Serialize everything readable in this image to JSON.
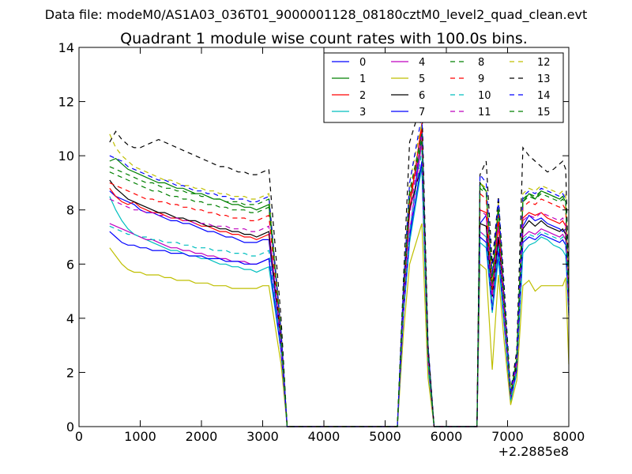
{
  "figure": {
    "suptitle": "Data file: modeM0/AS1A03_036T01_9000001128_08180cztM0_level2_quad_clean.evt",
    "title": "Quadrant 1 module wise count rates with 100.0s bins.",
    "offset_label": "+2.2885e8"
  },
  "chart_data": {
    "type": "line",
    "title": "Quadrant 1 module wise count rates with 100.0s bins.",
    "xlabel": "",
    "ylabel": "",
    "xlim": [
      0,
      8000
    ],
    "ylim": [
      0,
      14
    ],
    "x_offset": 228850000,
    "grid": false,
    "legend_placement": "top-right",
    "legend_columns": 4,
    "x_ticks": [
      0,
      1000,
      2000,
      3000,
      4000,
      5000,
      6000,
      7000,
      8000
    ],
    "y_ticks": [
      0,
      2,
      4,
      6,
      8,
      10,
      12,
      14
    ],
    "x_tick_labels": [
      "0",
      "1000",
      "2000",
      "3000",
      "4000",
      "5000",
      "6000",
      "7000",
      "8000"
    ],
    "y_tick_labels": [
      "0",
      "2",
      "4",
      "6",
      "8",
      "10",
      "12",
      "14"
    ],
    "series": [
      {
        "name": "0",
        "color": "#0000ff",
        "dash": false,
        "gti1": [
          8.7,
          8.5,
          8.4,
          8.3,
          8.2,
          8.0,
          7.9,
          7.9,
          7.8,
          7.7,
          7.6,
          7.6,
          7.5,
          7.5,
          7.4,
          7.3,
          7.2,
          7.2,
          7.1,
          7.0,
          7.0,
          6.9,
          6.8,
          6.8,
          6.8,
          6.9,
          6.9
        ],
        "end1": 3.0,
        "peak": [
          4.5,
          7.0,
          11.0,
          3.0
        ],
        "gti3": [
          7.5,
          7.8,
          5.0,
          7.0,
          4.0,
          1.0,
          2.0,
          7.4,
          7.8,
          7.6,
          7.7,
          7.5,
          7.4,
          7.3,
          7.2,
          7.3,
          4.5
        ]
      },
      {
        "name": "1",
        "color": "#008000",
        "dash": false,
        "gti1": [
          9.8,
          9.9,
          9.7,
          9.5,
          9.4,
          9.3,
          9.2,
          9.1,
          9.0,
          9.0,
          8.9,
          8.8,
          8.8,
          8.7,
          8.6,
          8.6,
          8.5,
          8.4,
          8.4,
          8.3,
          8.2,
          8.2,
          8.1,
          8.1,
          8.0,
          8.1,
          8.2
        ],
        "end1": 3.5,
        "peak": [
          5.0,
          8.4,
          10.5,
          2.5
        ],
        "gti3": [
          9.0,
          8.7,
          5.5,
          8.0,
          4.5,
          1.2,
          2.5,
          8.3,
          8.6,
          8.4,
          8.7,
          8.6,
          8.5,
          8.4,
          8.5,
          8.3,
          5.0
        ]
      },
      {
        "name": "2",
        "color": "#ff0000",
        "dash": false,
        "gti1": [
          8.8,
          8.5,
          8.3,
          8.2,
          8.3,
          8.1,
          8.0,
          7.9,
          7.9,
          7.8,
          7.7,
          7.7,
          7.6,
          7.6,
          7.5,
          7.4,
          7.4,
          7.3,
          7.2,
          7.2,
          7.1,
          7.1,
          7.0,
          7.0,
          6.9,
          7.0,
          7.1
        ],
        "end1": 3.2,
        "peak": [
          4.8,
          8.0,
          11.2,
          2.6
        ],
        "gti3": [
          8.0,
          7.9,
          4.8,
          7.5,
          4.2,
          1.1,
          2.2,
          7.7,
          7.9,
          7.8,
          7.9,
          7.7,
          7.6,
          7.5,
          7.6,
          7.4,
          4.6
        ]
      },
      {
        "name": "3",
        "color": "#00bfbf",
        "dash": false,
        "gti1": [
          8.5,
          8.0,
          7.6,
          7.3,
          7.1,
          7.0,
          6.9,
          6.8,
          6.7,
          6.6,
          6.5,
          6.5,
          6.4,
          6.3,
          6.3,
          6.2,
          6.2,
          6.1,
          6.0,
          6.0,
          5.9,
          5.9,
          5.8,
          5.8,
          5.7,
          5.8,
          5.9
        ],
        "end1": 2.8,
        "peak": [
          4.2,
          6.8,
          9.6,
          2.2
        ],
        "gti3": [
          6.8,
          6.6,
          4.2,
          6.2,
          3.6,
          0.9,
          2.0,
          6.4,
          6.7,
          6.8,
          7.0,
          6.9,
          6.7,
          6.6,
          6.5,
          6.3,
          4.2
        ]
      },
      {
        "name": "4",
        "color": "#bf00bf",
        "dash": false,
        "gti1": [
          7.5,
          7.4,
          7.3,
          7.2,
          7.1,
          7.0,
          6.9,
          6.9,
          6.8,
          6.7,
          6.6,
          6.6,
          6.5,
          6.5,
          6.4,
          6.4,
          6.3,
          6.3,
          6.2,
          6.2,
          6.1,
          6.1,
          6.1,
          6.0,
          6.0,
          6.1,
          6.2
        ],
        "end1": 2.8,
        "peak": [
          4.2,
          7.2,
          10.5,
          2.4
        ],
        "gti3": [
          7.2,
          7.0,
          4.4,
          6.8,
          3.8,
          1.0,
          2.1,
          7.0,
          7.2,
          7.1,
          7.3,
          7.2,
          7.1,
          7.0,
          7.1,
          6.9,
          4.3
        ]
      },
      {
        "name": "5",
        "color": "#bfbf00",
        "dash": false,
        "gti1": [
          6.6,
          6.3,
          6.0,
          5.8,
          5.7,
          5.7,
          5.6,
          5.6,
          5.6,
          5.5,
          5.5,
          5.4,
          5.4,
          5.4,
          5.3,
          5.3,
          5.3,
          5.2,
          5.2,
          5.2,
          5.1,
          5.1,
          5.1,
          5.1,
          5.1,
          5.2,
          5.2
        ],
        "end1": 2.3,
        "peak": [
          3.5,
          6.0,
          7.5,
          1.8
        ],
        "gti3": [
          6.0,
          5.8,
          2.1,
          5.6,
          3.0,
          0.8,
          1.7,
          5.2,
          5.4,
          5.0,
          5.2,
          5.2,
          5.2,
          5.2,
          5.2,
          5.5,
          2.3
        ]
      },
      {
        "name": "6",
        "color": "#000000",
        "dash": false,
        "gti1": [
          9.1,
          8.8,
          8.6,
          8.4,
          8.3,
          8.2,
          8.1,
          8.0,
          7.9,
          7.9,
          7.8,
          7.7,
          7.7,
          7.6,
          7.6,
          7.5,
          7.4,
          7.4,
          7.3,
          7.3,
          7.2,
          7.2,
          7.1,
          7.1,
          7.0,
          7.1,
          7.2
        ],
        "end1": 3.2,
        "peak": [
          4.8,
          8.0,
          9.7,
          2.6
        ],
        "gti3": [
          7.5,
          7.4,
          4.8,
          7.0,
          4.1,
          1.1,
          2.3,
          7.3,
          7.6,
          7.4,
          7.6,
          7.4,
          7.3,
          7.2,
          7.3,
          7.1,
          4.5
        ]
      },
      {
        "name": "7",
        "color": "#0000ff",
        "dash": false,
        "gti1": [
          7.2,
          7.0,
          6.8,
          6.7,
          6.7,
          6.6,
          6.6,
          6.5,
          6.5,
          6.5,
          6.4,
          6.4,
          6.4,
          6.3,
          6.3,
          6.3,
          6.2,
          6.2,
          6.2,
          6.1,
          6.1,
          6.1,
          6.0,
          6.0,
          6.0,
          6.1,
          6.2
        ],
        "end1": 2.8,
        "peak": [
          4.2,
          7.0,
          9.8,
          2.4
        ],
        "gti3": [
          7.0,
          6.8,
          4.3,
          6.5,
          3.7,
          1.0,
          2.1,
          6.8,
          7.0,
          6.9,
          7.1,
          7.0,
          6.9,
          6.8,
          6.9,
          6.7,
          4.1
        ]
      },
      {
        "name": "8",
        "color": "#008000",
        "dash": true,
        "gti1": [
          9.4,
          9.3,
          9.2,
          9.1,
          9.0,
          8.9,
          8.8,
          8.7,
          8.7,
          8.6,
          8.5,
          8.5,
          8.4,
          8.4,
          8.3,
          8.3,
          8.2,
          8.2,
          8.1,
          8.1,
          8.0,
          8.0,
          8.0,
          7.9,
          7.9,
          8.0,
          8.1
        ],
        "end1": 3.4,
        "peak": [
          5.0,
          8.6,
          10.6,
          2.7
        ],
        "gti3": [
          8.8,
          8.6,
          5.2,
          8.0,
          4.4,
          1.2,
          2.5,
          8.3,
          8.5,
          8.4,
          8.6,
          8.5,
          8.4,
          8.3,
          8.4,
          8.2,
          4.8
        ]
      },
      {
        "name": "9",
        "color": "#ff0000",
        "dash": true,
        "gti1": [
          9.0,
          8.9,
          8.8,
          8.7,
          8.6,
          8.5,
          8.4,
          8.4,
          8.3,
          8.3,
          8.2,
          8.2,
          8.1,
          8.1,
          8.0,
          8.0,
          7.9,
          7.9,
          7.8,
          7.8,
          7.7,
          7.7,
          7.7,
          7.6,
          7.6,
          7.7,
          7.8
        ],
        "end1": 3.3,
        "peak": [
          4.9,
          8.4,
          11.0,
          2.7
        ],
        "gti3": [
          8.6,
          8.4,
          5.0,
          7.8,
          4.3,
          1.2,
          2.4,
          8.1,
          8.3,
          8.2,
          8.4,
          8.3,
          8.2,
          8.1,
          8.2,
          8.0,
          4.7
        ]
      },
      {
        "name": "10",
        "color": "#00bfbf",
        "dash": true,
        "gti1": [
          7.4,
          7.3,
          7.2,
          7.1,
          7.1,
          7.0,
          7.0,
          6.9,
          6.9,
          6.8,
          6.8,
          6.8,
          6.7,
          6.7,
          6.6,
          6.6,
          6.6,
          6.5,
          6.5,
          6.5,
          6.4,
          6.4,
          6.4,
          6.3,
          6.3,
          6.4,
          6.5
        ],
        "end1": 2.9,
        "peak": [
          4.3,
          7.2,
          10.2,
          2.4
        ],
        "gti3": [
          7.2,
          7.0,
          4.4,
          6.7,
          3.8,
          1.0,
          2.1,
          6.9,
          7.1,
          7.0,
          7.2,
          7.1,
          7.0,
          6.9,
          7.0,
          6.8,
          4.2
        ]
      },
      {
        "name": "11",
        "color": "#bf00bf",
        "dash": true,
        "gti1": [
          8.4,
          8.3,
          8.2,
          8.1,
          8.0,
          8.0,
          7.9,
          7.9,
          7.8,
          7.8,
          7.7,
          7.7,
          7.6,
          7.6,
          7.5,
          7.5,
          7.5,
          7.4,
          7.4,
          7.4,
          7.3,
          7.3,
          7.3,
          7.2,
          7.2,
          7.3,
          7.4
        ],
        "end1": 3.1,
        "peak": [
          4.6,
          7.8,
          10.8,
          2.5
        ],
        "gti3": [
          8.0,
          7.8,
          4.8,
          7.4,
          4.0,
          1.1,
          2.3,
          7.6,
          7.8,
          7.7,
          7.9,
          7.8,
          7.7,
          7.6,
          7.7,
          7.5,
          4.4
        ]
      },
      {
        "name": "12",
        "color": "#bfbf00",
        "dash": true,
        "gti1": [
          10.8,
          10.3,
          10.0,
          9.8,
          9.6,
          9.5,
          9.4,
          9.3,
          9.2,
          9.1,
          9.1,
          9.0,
          8.9,
          8.9,
          8.8,
          8.8,
          8.7,
          8.7,
          8.6,
          8.6,
          8.5,
          8.5,
          8.5,
          8.4,
          8.4,
          8.5,
          8.6
        ],
        "end1": 3.6,
        "peak": [
          5.2,
          9.0,
          11.2,
          2.8
        ],
        "gti3": [
          9.0,
          8.8,
          5.4,
          8.3,
          4.6,
          1.3,
          2.6,
          8.6,
          8.8,
          8.7,
          8.9,
          8.8,
          8.7,
          8.6,
          8.7,
          8.5,
          5.0
        ]
      },
      {
        "name": "13",
        "color": "#000000",
        "dash": true,
        "gti1": [
          10.5,
          10.9,
          10.6,
          10.4,
          10.3,
          10.3,
          10.4,
          10.5,
          10.6,
          10.5,
          10.4,
          10.3,
          10.2,
          10.1,
          10.0,
          9.9,
          9.8,
          9.7,
          9.6,
          9.6,
          9.5,
          9.4,
          9.4,
          9.3,
          9.3,
          9.4,
          9.5
        ],
        "end1": 4.0,
        "peak": [
          5.5,
          10.5,
          12.0,
          3.0
        ],
        "gti3": [
          9.3,
          9.8,
          6.0,
          8.5,
          5.0,
          1.3,
          2.8,
          10.3,
          10.0,
          9.8,
          9.6,
          9.4,
          9.5,
          9.7,
          9.8,
          9.5,
          5.2
        ]
      },
      {
        "name": "14",
        "color": "#0000ff",
        "dash": true,
        "gti1": [
          10.0,
          9.9,
          9.8,
          9.6,
          9.5,
          9.4,
          9.3,
          9.2,
          9.1,
          9.1,
          9.0,
          8.9,
          8.9,
          8.8,
          8.7,
          8.7,
          8.6,
          8.6,
          8.5,
          8.5,
          8.4,
          8.4,
          8.4,
          8.3,
          8.3,
          8.4,
          8.5
        ],
        "end1": 3.5,
        "peak": [
          5.2,
          9.0,
          11.5,
          2.8
        ],
        "gti3": [
          9.3,
          9.0,
          5.6,
          8.4,
          4.7,
          1.2,
          2.6,
          8.5,
          8.7,
          8.6,
          8.8,
          8.7,
          8.6,
          8.5,
          8.6,
          8.4,
          4.9
        ]
      },
      {
        "name": "15",
        "color": "#008000",
        "dash": true,
        "gti1": [
          9.6,
          9.5,
          9.4,
          9.3,
          9.2,
          9.1,
          9.0,
          9.0,
          8.9,
          8.8,
          8.8,
          8.7,
          8.7,
          8.6,
          8.6,
          8.5,
          8.5,
          8.4,
          8.4,
          8.3,
          8.3,
          8.3,
          8.2,
          8.2,
          8.2,
          8.3,
          8.4
        ],
        "end1": 3.4,
        "peak": [
          5.0,
          8.7,
          10.8,
          2.7
        ],
        "gti3": [
          8.9,
          8.7,
          5.3,
          8.1,
          4.5,
          1.2,
          2.5,
          8.4,
          8.6,
          8.5,
          8.7,
          8.6,
          8.5,
          8.4,
          8.5,
          8.3,
          4.8
        ]
      }
    ],
    "gti1_x_start": 500,
    "gti1_x_step": 100,
    "gti1_end_x": 3300,
    "gap_zero_points": [
      3400,
      5200
    ],
    "peak_x": [
      5300,
      5400,
      5600,
      5700
    ],
    "gap2_zero_points": [
      5800,
      6500
    ],
    "gti3_x": [
      6550,
      6650,
      6750,
      6850,
      6950,
      7050,
      7150,
      7250,
      7350,
      7450,
      7550,
      7650,
      7750,
      7850,
      7900,
      7950,
      8000
    ]
  }
}
